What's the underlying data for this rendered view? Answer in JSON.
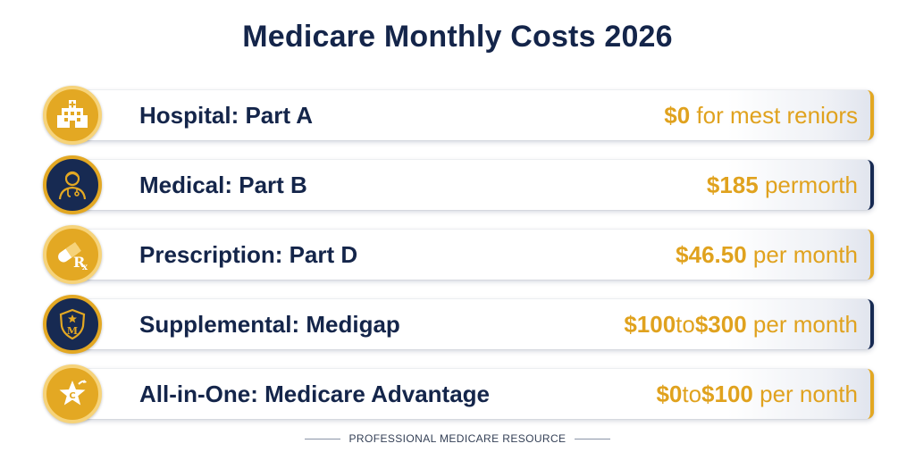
{
  "title": "Medicare Monthly Costs 2026",
  "colors": {
    "navy": "#14254a",
    "gold": "#e0a21e"
  },
  "rows": [
    {
      "label": "Hospital: Part A",
      "amount": "$0",
      "amount2": "",
      "connector": "",
      "suffix": "for mest reniors",
      "icon": "hospital-icon",
      "style": "gold"
    },
    {
      "label": "Medical: Part B",
      "amount": "$185",
      "amount2": "",
      "connector": "",
      "suffix": "permorth",
      "icon": "doctor-icon",
      "style": "navy"
    },
    {
      "label": "Prescription: Part D",
      "amount": "$46.50",
      "amount2": "",
      "connector": "",
      "suffix": "per month",
      "icon": "pill-rx-icon",
      "style": "gold"
    },
    {
      "label": "Supplemental: Medigap",
      "amount": "$100",
      "amount2": "$300",
      "connector": "to",
      "suffix": "per month",
      "icon": "shield-m-icon",
      "style": "navy"
    },
    {
      "label": "All-in-One: Medicare Advantage",
      "amount": "$0",
      "amount2": "$100",
      "connector": "to",
      "suffix": "per  nonth",
      "icon": "star-c-icon",
      "style": "gold"
    }
  ],
  "footer": "PROFESSIONAL MEDICARE RESOURCE"
}
